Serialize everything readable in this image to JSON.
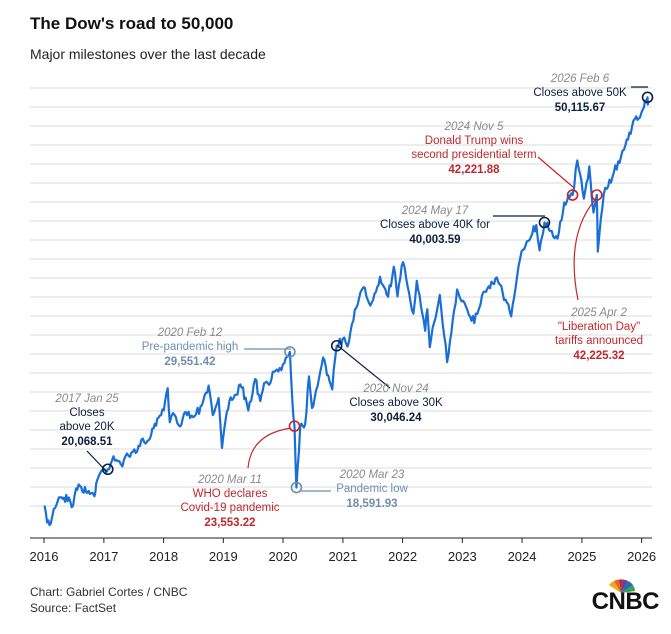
{
  "header": {
    "title": "The Dow's road to 50,000",
    "subtitle": "Major milestones over the last decade"
  },
  "footer": {
    "credit": "Chart: Gabriel Cortes / CNBC",
    "source": "Source: FactSet",
    "logo_text": "CNBC"
  },
  "colors": {
    "line": "#1a6fd6",
    "dark": "#0d1f3d",
    "red": "#c0272d",
    "steel": "#6e8fae",
    "date": "#8a8a8a",
    "grid": "#cfcfcf"
  },
  "chart_data": {
    "type": "line",
    "title": "The Dow's road to 50,000",
    "subtitle": "Major milestones over the last decade",
    "x_ticks": [
      "2016",
      "2017",
      "2018",
      "2019",
      "2020",
      "2021",
      "2022",
      "2023",
      "2024",
      "2025",
      "2026"
    ],
    "xlim": [
      "2016-01-01",
      "2026-02-15"
    ],
    "ylim": [
      15000,
      52000
    ],
    "grid": "horizontal",
    "series": [
      {
        "points": [
          [
            "2016-01-04",
            17149
          ],
          [
            "2016-01-20",
            15766
          ],
          [
            "2016-02-11",
            15660
          ],
          [
            "2016-03-01",
            16865
          ],
          [
            "2016-04-01",
            17792
          ],
          [
            "2016-05-01",
            17774
          ],
          [
            "2016-06-01",
            17789
          ],
          [
            "2016-06-27",
            17140
          ],
          [
            "2016-07-15",
            18516
          ],
          [
            "2016-08-15",
            18636
          ],
          [
            "2016-09-15",
            18212
          ],
          [
            "2016-10-15",
            18138
          ],
          [
            "2016-11-04",
            17888
          ],
          [
            "2016-11-15",
            18923
          ],
          [
            "2016-12-20",
            19974
          ],
          [
            "2017-01-25",
            20068.51
          ],
          [
            "2017-03-01",
            21115
          ],
          [
            "2017-04-15",
            20453
          ],
          [
            "2017-06-01",
            21144
          ],
          [
            "2017-08-01",
            21963
          ],
          [
            "2017-10-01",
            22405
          ],
          [
            "2017-11-01",
            23377
          ],
          [
            "2017-12-01",
            24231
          ],
          [
            "2018-01-02",
            24824
          ],
          [
            "2018-01-26",
            26616
          ],
          [
            "2018-02-08",
            23860
          ],
          [
            "2018-03-01",
            24608
          ],
          [
            "2018-04-02",
            23644
          ],
          [
            "2018-05-15",
            24706
          ],
          [
            "2018-07-01",
            24271
          ],
          [
            "2018-08-15",
            25162
          ],
          [
            "2018-10-03",
            26828
          ],
          [
            "2018-10-29",
            24443
          ],
          [
            "2018-12-03",
            25826
          ],
          [
            "2018-12-24",
            21792
          ],
          [
            "2019-01-15",
            24065
          ],
          [
            "2019-02-15",
            25883
          ],
          [
            "2019-04-23",
            26656
          ],
          [
            "2019-06-03",
            24819
          ],
          [
            "2019-07-15",
            27359
          ],
          [
            "2019-08-15",
            25579
          ],
          [
            "2019-09-15",
            27076
          ],
          [
            "2019-10-15",
            27024
          ],
          [
            "2019-11-15",
            28004
          ],
          [
            "2019-12-31",
            28538
          ],
          [
            "2020-02-12",
            29551.42
          ],
          [
            "2020-02-28",
            25409
          ],
          [
            "2020-03-11",
            23553.22
          ],
          [
            "2020-03-23",
            18591.93
          ],
          [
            "2020-04-15",
            23504
          ],
          [
            "2020-05-15",
            23685
          ],
          [
            "2020-06-08",
            27572
          ],
          [
            "2020-06-26",
            25016
          ],
          [
            "2020-08-15",
            27931
          ],
          [
            "2020-09-02",
            29100
          ],
          [
            "2020-10-28",
            26519
          ],
          [
            "2020-11-24",
            30046.24
          ],
          [
            "2020-12-31",
            30606
          ],
          [
            "2021-01-29",
            29983
          ],
          [
            "2021-03-15",
            32953
          ],
          [
            "2021-05-07",
            34778
          ],
          [
            "2021-06-18",
            33290
          ],
          [
            "2021-08-16",
            35625
          ],
          [
            "2021-10-04",
            34002
          ],
          [
            "2021-11-08",
            36432
          ],
          [
            "2021-12-01",
            34022
          ],
          [
            "2022-01-04",
            36799
          ],
          [
            "2022-03-08",
            32632
          ],
          [
            "2022-03-29",
            35294
          ],
          [
            "2022-05-19",
            31253
          ],
          [
            "2022-06-01",
            33000
          ],
          [
            "2022-06-16",
            29927
          ],
          [
            "2022-08-16",
            34152
          ],
          [
            "2022-09-30",
            28726
          ],
          [
            "2022-11-30",
            34590
          ],
          [
            "2023-01-15",
            33500
          ],
          [
            "2023-03-15",
            31874
          ],
          [
            "2023-05-01",
            34100
          ],
          [
            "2023-07-31",
            35560
          ],
          [
            "2023-10-27",
            32418
          ],
          [
            "2023-12-29",
            37690
          ],
          [
            "2024-03-28",
            39807
          ],
          [
            "2024-04-17",
            37753
          ],
          [
            "2024-05-17",
            40003.59
          ],
          [
            "2024-08-05",
            38703
          ],
          [
            "2024-09-15",
            41622
          ],
          [
            "2024-11-05",
            42221.88
          ],
          [
            "2024-12-04",
            45014
          ],
          [
            "2025-01-13",
            41938
          ],
          [
            "2025-02-15",
            44546
          ],
          [
            "2025-03-13",
            40813
          ],
          [
            "2025-04-02",
            42225.32
          ],
          [
            "2025-04-08",
            37646
          ],
          [
            "2025-05-15",
            42322
          ],
          [
            "2025-07-15",
            44023
          ],
          [
            "2025-09-15",
            45883
          ],
          [
            "2025-11-12",
            48254
          ],
          [
            "2025-12-15",
            48416
          ],
          [
            "2026-01-15",
            49300
          ],
          [
            "2026-02-06",
            50115.67
          ],
          [
            "2026-02-12",
            49500
          ]
        ]
      }
    ],
    "annotations": [
      {
        "date_label": "2017 Jan 25",
        "lines": [
          "Closes",
          "above 20K"
        ],
        "value": "20,068.51",
        "x": "2017-01-25",
        "y": 20068.51,
        "style": "dark"
      },
      {
        "date_label": "2020 Feb 12",
        "lines": [
          "Pre-pandemic high"
        ],
        "value": "29,551.42",
        "x": "2020-02-12",
        "y": 29551.42,
        "style": "steel"
      },
      {
        "date_label": "2020 Mar 11",
        "lines": [
          "WHO declares",
          "Covid-19 pandemic"
        ],
        "value": "23,553.22",
        "x": "2020-03-11",
        "y": 23553.22,
        "style": "red"
      },
      {
        "date_label": "2020 Mar 23",
        "lines": [
          "Pandemic low"
        ],
        "value": "18,591.93",
        "x": "2020-03-23",
        "y": 18591.93,
        "style": "steel"
      },
      {
        "date_label": "2020 Nov 24",
        "lines": [
          "Closes above 30K"
        ],
        "value": "30,046.24",
        "x": "2020-11-24",
        "y": 30046.24,
        "style": "dark"
      },
      {
        "date_label": "2024 May 17",
        "lines": [
          "Closes above 40K for"
        ],
        "value": "40,003.59",
        "x": "2024-05-17",
        "y": 40003.59,
        "style": "dark"
      },
      {
        "date_label": "2024 Nov 5",
        "lines": [
          "Donald Trump wins",
          "second presidential term"
        ],
        "value": "42,221.88",
        "x": "2024-11-05",
        "y": 42221.88,
        "style": "red"
      },
      {
        "date_label": "2025 Apr 2",
        "lines": [
          "\"Liberation Day\"",
          "tariffs announced"
        ],
        "value": "42,225.32",
        "x": "2025-04-02",
        "y": 42225.32,
        "style": "red"
      },
      {
        "date_label": "2026 Feb 6",
        "lines": [
          "Closes above 50K"
        ],
        "value": "50,115.67",
        "x": "2026-02-06",
        "y": 50115.67,
        "style": "dark"
      }
    ]
  }
}
